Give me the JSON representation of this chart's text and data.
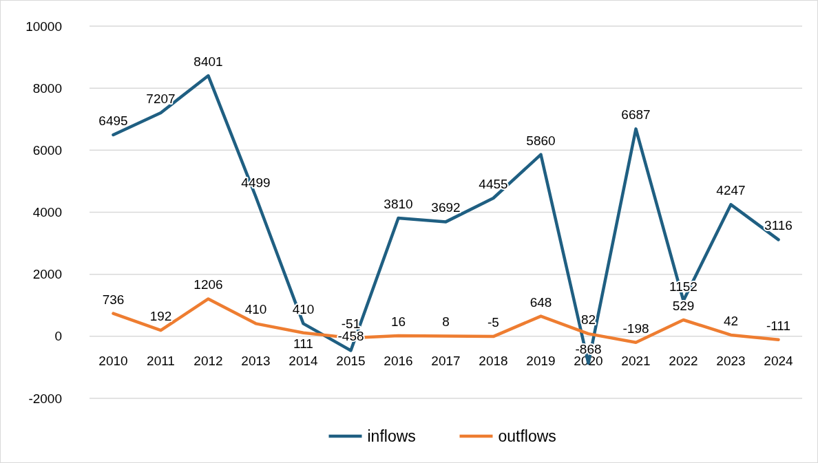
{
  "chart_data": {
    "type": "line",
    "categories": [
      "2010",
      "2011",
      "2012",
      "2013",
      "2014",
      "2015",
      "2016",
      "2017",
      "2018",
      "2019",
      "2020",
      "2021",
      "2022",
      "2023",
      "2024"
    ],
    "series": [
      {
        "name": "inflows",
        "color": "#1f5f82",
        "values": [
          6495,
          7207,
          8401,
          4499,
          410,
          -458,
          3810,
          3692,
          4455,
          5860,
          -868,
          6687,
          1152,
          4247,
          3116
        ]
      },
      {
        "name": "outflows",
        "color": "#ee7d31",
        "values": [
          736,
          192,
          1206,
          410,
          111,
          -51,
          16,
          8,
          -5,
          648,
          82,
          -198,
          529,
          42,
          -111
        ]
      }
    ],
    "ylim": [
      -2000,
      10000
    ],
    "yticks": [
      -2000,
      0,
      2000,
      4000,
      6000,
      8000,
      10000
    ],
    "grid": "y",
    "legend": "bottom",
    "data_labels": true,
    "marker": "none",
    "line_style": "solid"
  }
}
